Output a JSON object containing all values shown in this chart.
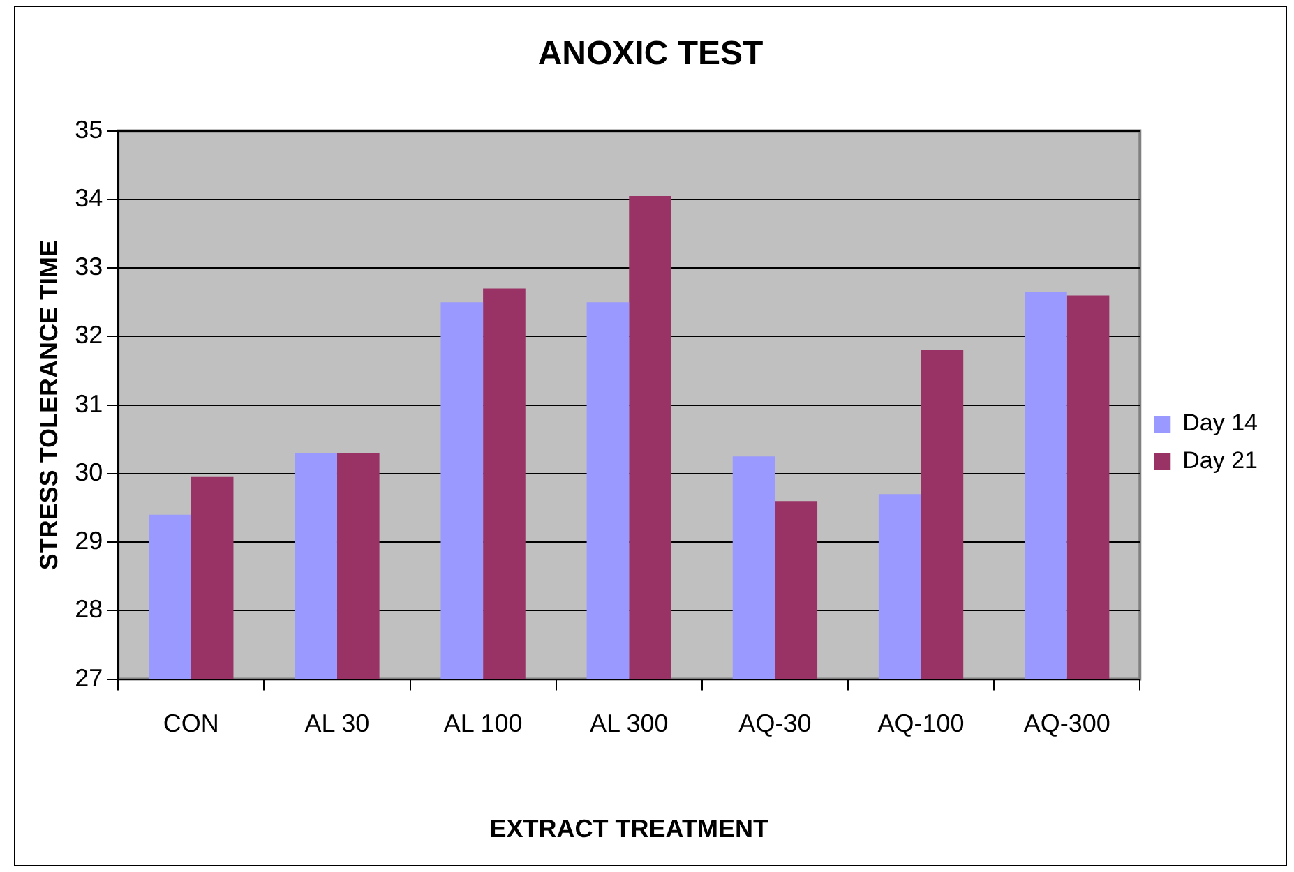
{
  "chart_data": {
    "type": "bar",
    "title": "ANOXIC TEST",
    "xlabel": "EXTRACT TREATMENT",
    "ylabel": "STRESS TOLERANCE TIME",
    "categories": [
      "CON",
      "AL 30",
      "AL 100",
      "AL 300",
      "AQ-30",
      "AQ-100",
      "AQ-300"
    ],
    "series": [
      {
        "name": "Day 14",
        "color": "#9999ff",
        "values": [
          29.4,
          30.3,
          32.5,
          32.5,
          30.25,
          29.7,
          32.65
        ]
      },
      {
        "name": "Day 21",
        "color": "#993366",
        "values": [
          29.95,
          30.3,
          32.7,
          34.05,
          29.6,
          31.8,
          32.6
        ]
      }
    ],
    "ylim": [
      27,
      35
    ],
    "yticks": [
      27,
      28,
      29,
      30,
      31,
      32,
      33,
      34,
      35
    ],
    "grid": "y",
    "legend": "right"
  }
}
